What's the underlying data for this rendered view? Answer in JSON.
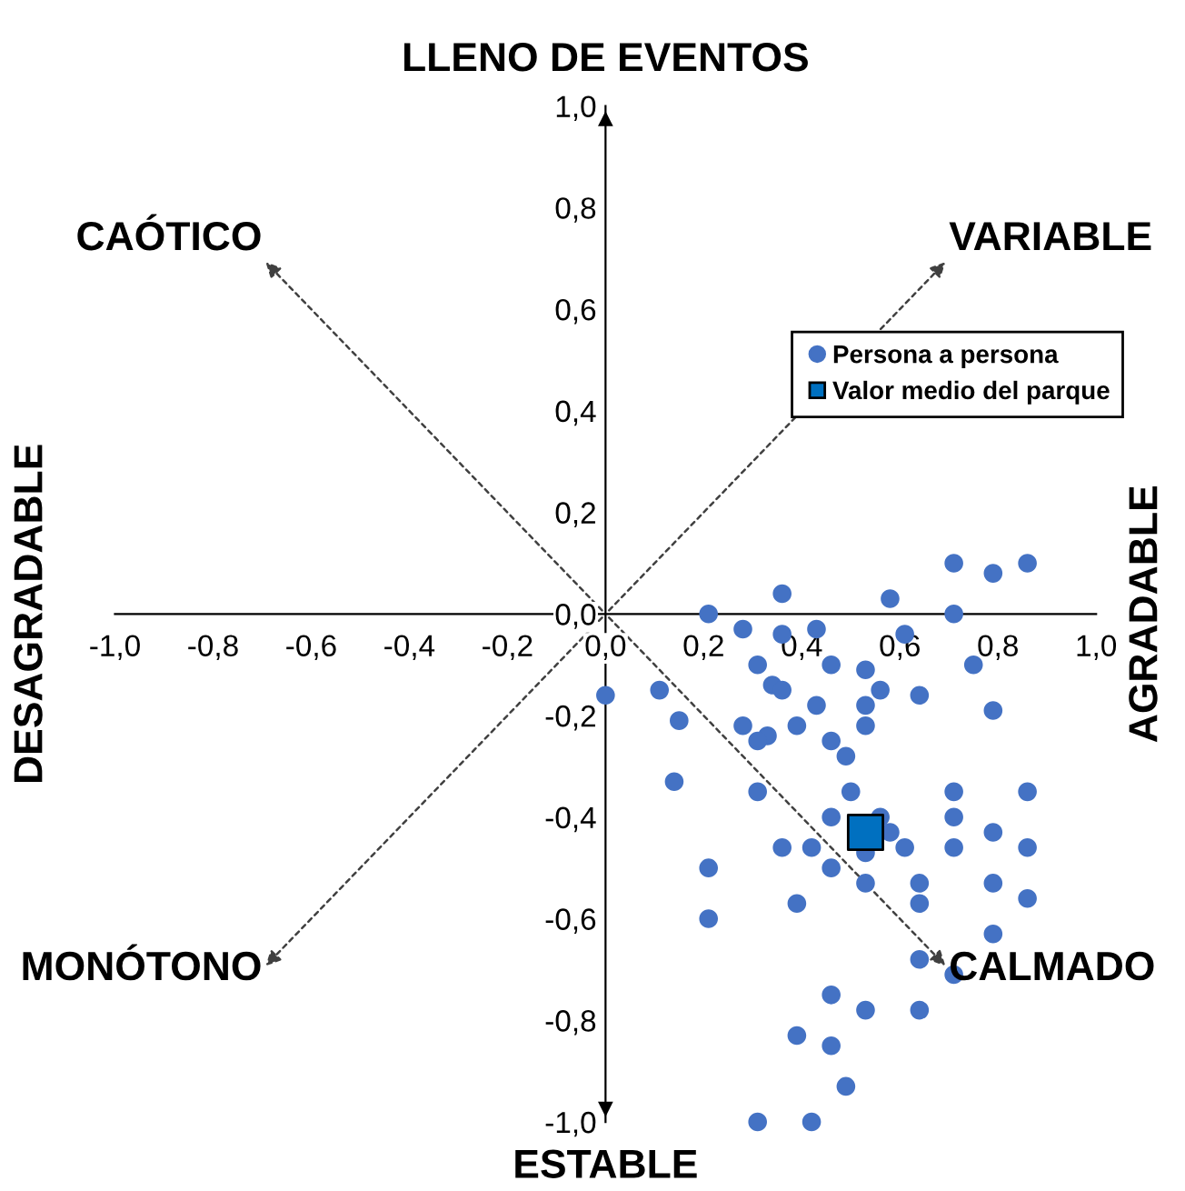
{
  "chart_data": {
    "type": "scatter",
    "xlim": [
      -1,
      1
    ],
    "ylim": [
      -1,
      1
    ],
    "xticks": [
      {
        "value": -1,
        "label": "-1,0"
      },
      {
        "value": -0.8,
        "label": "-0,8"
      },
      {
        "value": -0.6,
        "label": "-0,6"
      },
      {
        "value": -0.4,
        "label": "-0,4"
      },
      {
        "value": -0.2,
        "label": "-0,2"
      },
      {
        "value": 0,
        "label": "0,0"
      },
      {
        "value": 0.2,
        "label": "0,2"
      },
      {
        "value": 0.4,
        "label": "0,4"
      },
      {
        "value": 0.6,
        "label": "0,6"
      },
      {
        "value": 0.8,
        "label": "0,8"
      },
      {
        "value": 1,
        "label": "1,0"
      }
    ],
    "yticks": [
      {
        "value": -1,
        "label": "-1,0"
      },
      {
        "value": -0.8,
        "label": "-0,8"
      },
      {
        "value": -0.6,
        "label": "-0,6"
      },
      {
        "value": -0.4,
        "label": "-0,4"
      },
      {
        "value": -0.2,
        "label": "-0,2"
      },
      {
        "value": 0,
        "label": "0,0"
      },
      {
        "value": 0.2,
        "label": "0,2"
      },
      {
        "value": 0.4,
        "label": "0,4"
      },
      {
        "value": 0.6,
        "label": "0,6"
      },
      {
        "value": 0.8,
        "label": "0,8"
      },
      {
        "value": 1,
        "label": "1,0"
      }
    ],
    "grid": false,
    "legend": "top right",
    "series": [
      {
        "name": "Persona a persona",
        "color": "#4472c4",
        "marker": "circle",
        "x": [
          0.71,
          0.79,
          0.86,
          0.36,
          0.58,
          0.21,
          0.71,
          0.28,
          0.43,
          0.36,
          0.61,
          0.31,
          0.46,
          0.53,
          0.75,
          0.0,
          0.11,
          0.34,
          0.36,
          0.56,
          0.64,
          0.43,
          0.53,
          0.79,
          0.15,
          0.28,
          0.33,
          0.31,
          0.39,
          0.53,
          0.46,
          0.49,
          0.14,
          0.31,
          0.5,
          0.71,
          0.86,
          0.46,
          0.56,
          0.71,
          0.79,
          0.58,
          0.36,
          0.42,
          0.53,
          0.61,
          0.71,
          0.86,
          0.21,
          0.46,
          0.53,
          0.64,
          0.79,
          0.64,
          0.39,
          0.86,
          0.21,
          0.79,
          0.64,
          0.71,
          0.46,
          0.53,
          0.64,
          0.39,
          0.46,
          0.49,
          0.31,
          0.42
        ],
        "values": [
          0.1,
          0.08,
          0.1,
          0.04,
          0.03,
          0.0,
          0.0,
          -0.03,
          -0.03,
          -0.04,
          -0.04,
          -0.1,
          -0.1,
          -0.11,
          -0.1,
          -0.16,
          -0.15,
          -0.14,
          -0.15,
          -0.15,
          -0.16,
          -0.18,
          -0.18,
          -0.19,
          -0.21,
          -0.22,
          -0.24,
          -0.25,
          -0.22,
          -0.22,
          -0.25,
          -0.28,
          -0.33,
          -0.35,
          -0.35,
          -0.35,
          -0.35,
          -0.4,
          -0.4,
          -0.4,
          -0.43,
          -0.43,
          -0.46,
          -0.46,
          -0.47,
          -0.46,
          -0.46,
          -0.46,
          -0.5,
          -0.5,
          -0.53,
          -0.53,
          -0.53,
          -0.57,
          -0.57,
          -0.56,
          -0.6,
          -0.63,
          -0.68,
          -0.71,
          -0.75,
          -0.78,
          -0.78,
          -0.83,
          -0.85,
          -0.93,
          -1.0,
          -1.0
        ]
      },
      {
        "name": "Valor medio del parque",
        "color": "#0070c0",
        "marker": "square",
        "x": [
          0.53
        ],
        "values": [
          -0.43
        ]
      }
    ],
    "annotations": [
      "LLENO DE EVENTOS",
      "ESTABLE",
      "AGRADABLE",
      "DESAGRADABLE",
      "CAÓTICO",
      "VARIABLE",
      "MONÓTONO",
      "CALMADO"
    ]
  }
}
